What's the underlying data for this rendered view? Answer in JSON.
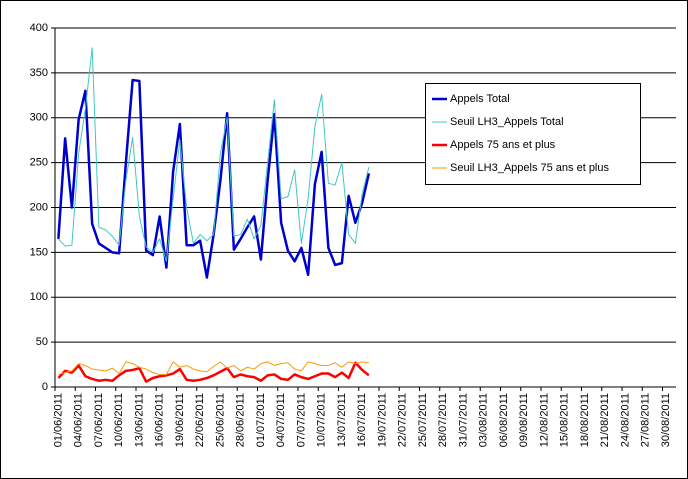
{
  "chart_data": {
    "type": "line",
    "categories": [
      "01/06/2011",
      null,
      null,
      "04/06/2011",
      null,
      null,
      "07/06/2011",
      null,
      null,
      "10/06/2011",
      null,
      null,
      "13/06/2011",
      null,
      null,
      "16/06/2011",
      null,
      null,
      "19/06/2011",
      null,
      null,
      "22/06/2011",
      null,
      null,
      "25/06/2011",
      null,
      null,
      "28/06/2011",
      null,
      null,
      "01/07/2011",
      null,
      null,
      "04/07/2011",
      null,
      null,
      "07/07/2011",
      null,
      null,
      "10/07/2011",
      null,
      null,
      "13/07/2011",
      null,
      null,
      "16/07/2011",
      null,
      null,
      "19/07/2011",
      null,
      null,
      "22/07/2011",
      null,
      null,
      "25/07/2011",
      null,
      null,
      "28/07/2011",
      null,
      null,
      "31/07/2011",
      null,
      null,
      "03/08/2011",
      null,
      null,
      "06/08/2011",
      null,
      null,
      "09/08/2011",
      null,
      null,
      "12/08/2011",
      null,
      null,
      "15/08/2011",
      null,
      null,
      "18/08/2011",
      null,
      null,
      "21/08/2011",
      null,
      null,
      "24/08/2011",
      null,
      null,
      "27/08/2011",
      null,
      null,
      "30/08/2011",
      null
    ],
    "series": [
      {
        "name": "Appels Total",
        "color": "#0000cc",
        "values": [
          165,
          277,
          200,
          298,
          330,
          182,
          160,
          155,
          150,
          149,
          250,
          342,
          341,
          152,
          147,
          190,
          133,
          240,
          293,
          158,
          158,
          163,
          122,
          170,
          230,
          305,
          153,
          165,
          178,
          190,
          142,
          230,
          304,
          183,
          152,
          140,
          155,
          125,
          226,
          262,
          155,
          136,
          138,
          213,
          183,
          205,
          238,
          null,
          null,
          null,
          null,
          null,
          null,
          null,
          null,
          null,
          null,
          null,
          null,
          null,
          null,
          null,
          null,
          null,
          null,
          null,
          null,
          null,
          null,
          null,
          null,
          null,
          null,
          null,
          null,
          null,
          null,
          null,
          null,
          null,
          null,
          null,
          null,
          null,
          null,
          null,
          null,
          null,
          null,
          null,
          null,
          null
        ]
      },
      {
        "name": "Seuil LH3_Appels Total",
        "color": "#40c8c0",
        "values": [
          165,
          157,
          158,
          260,
          310,
          378,
          178,
          175,
          168,
          158,
          230,
          278,
          190,
          156,
          150,
          165,
          140,
          210,
          275,
          200,
          160,
          170,
          163,
          170,
          260,
          300,
          168,
          170,
          187,
          165,
          180,
          250,
          320,
          210,
          212,
          242,
          160,
          210,
          290,
          326,
          227,
          225,
          250,
          170,
          160,
          215,
          245,
          null,
          null,
          null,
          null,
          null,
          null,
          null,
          null,
          null,
          null,
          null,
          null,
          null,
          null,
          null,
          null,
          null,
          null,
          null,
          null,
          null,
          null,
          null,
          null,
          null,
          null,
          null,
          null,
          null,
          null,
          null,
          null,
          null,
          null,
          null,
          null,
          null,
          null,
          null,
          null,
          null,
          null,
          null,
          null,
          null
        ]
      },
      {
        "name": "Appels 75 ans et plus",
        "color": "#ff0000",
        "values": [
          10,
          18,
          16,
          24,
          12,
          9,
          7,
          8,
          7,
          13,
          18,
          19,
          21,
          6,
          10,
          12,
          13,
          15,
          20,
          8,
          7,
          8,
          10,
          13,
          17,
          21,
          11,
          14,
          12,
          11,
          7,
          13,
          14,
          9,
          8,
          14,
          11,
          9,
          12,
          15,
          15,
          11,
          16,
          10,
          27,
          19,
          13,
          null,
          null,
          null,
          null,
          null,
          null,
          null,
          null,
          null,
          null,
          null,
          null,
          null,
          null,
          null,
          null,
          null,
          null,
          null,
          null,
          null,
          null,
          null,
          null,
          null,
          null,
          null,
          null,
          null,
          null,
          null,
          null,
          null,
          null,
          null,
          null,
          null,
          null,
          null,
          null,
          null,
          null,
          null,
          null,
          null
        ]
      },
      {
        "name": "Seuil LH3_Appels 75 ans et plus",
        "color": "#ff9900",
        "values": [
          14,
          16,
          18,
          26,
          24,
          20,
          19,
          18,
          21,
          15,
          28,
          26,
          22,
          20,
          16,
          14,
          14,
          28,
          22,
          24,
          20,
          18,
          17,
          23,
          28,
          21,
          24,
          18,
          22,
          20,
          26,
          28,
          24,
          26,
          27,
          20,
          18,
          28,
          26,
          24,
          24,
          27,
          22,
          28,
          26,
          28,
          27,
          null,
          null,
          null,
          null,
          null,
          null,
          null,
          null,
          null,
          null,
          null,
          null,
          null,
          null,
          null,
          null,
          null,
          null,
          null,
          null,
          null,
          null,
          null,
          null,
          null,
          null,
          null,
          null,
          null,
          null,
          null,
          null,
          null,
          null,
          null,
          null,
          null,
          null,
          null,
          null,
          null,
          null,
          null,
          null,
          null
        ]
      }
    ],
    "ylim": [
      0,
      400
    ],
    "yticks": [
      0,
      50,
      100,
      150,
      200,
      250,
      300,
      350,
      400
    ],
    "grid": true
  }
}
